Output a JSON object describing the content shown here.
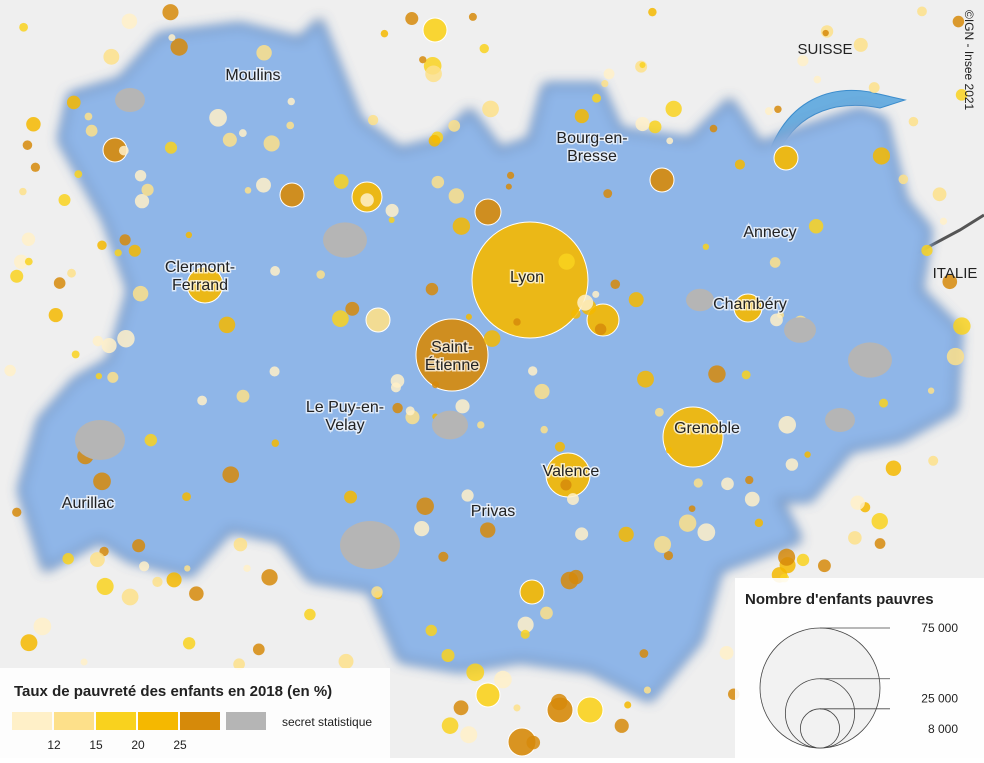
{
  "credit": "©IGN - Insee 2021",
  "countries": [
    "SUISSE",
    "ITALIE"
  ],
  "cities": [
    [
      "Moulins"
    ],
    [
      "Bourg-en-",
      "Bresse"
    ],
    [
      "Annecy"
    ],
    [
      "Clermont-",
      "Ferrand"
    ],
    [
      "Lyon"
    ],
    [
      "Chambéry"
    ],
    [
      "Saint-",
      "Étienne"
    ],
    [
      "Le Puy-en-",
      "Velay"
    ],
    [
      "Grenoble"
    ],
    [
      "Valence"
    ],
    [
      "Aurillac"
    ],
    [
      "Privas"
    ]
  ],
  "legend_color": {
    "title": "Taux de pauvreté des enfants en 2018 (en %)",
    "colors": [
      "#fff0c8",
      "#fde08a",
      "#f9d21e",
      "#f5b800",
      "#d68a0a",
      "#b5b5b5"
    ],
    "ticks": [
      12,
      15,
      20,
      25
    ],
    "secret": "secret statistique"
  },
  "legend_size": {
    "title": "Nombre d'enfants pauvres",
    "ticks": [
      {
        "value": 75000,
        "label": "75 000"
      },
      {
        "value": 25000,
        "label": "25 000"
      },
      {
        "value": 8000,
        "label": "8 000"
      }
    ]
  }
}
